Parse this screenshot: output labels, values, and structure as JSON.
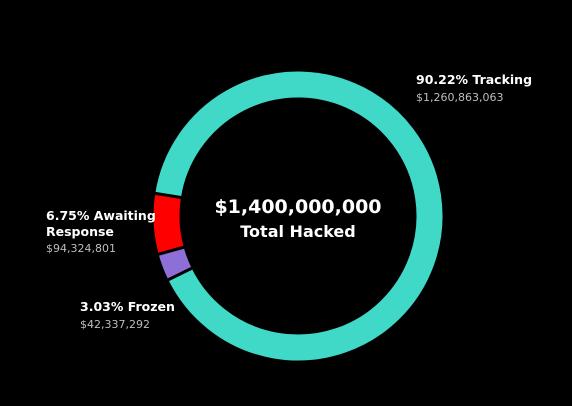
{
  "chart_data": {
    "type": "pie",
    "variant": "donut",
    "center": {
      "amount": "$1,400,000,000",
      "label": "Total Hacked"
    },
    "slices": [
      {
        "key": "tracking",
        "label": "90.22% Tracking",
        "value_label": "$1,260,863,063",
        "percent": 90.22,
        "value": 1260863063,
        "color": "#40d9c8"
      },
      {
        "key": "awaiting",
        "label_lines": [
          "6.75% Awaiting",
          "Response"
        ],
        "value_label": "$94,324,801",
        "percent": 6.75,
        "value": 94324801,
        "color": "#ff0000"
      },
      {
        "key": "frozen",
        "label": "3.03% Frozen",
        "value_label": "$42,337,292",
        "percent": 3.03,
        "value": 42337292,
        "color": "#8e6fd8"
      }
    ]
  }
}
